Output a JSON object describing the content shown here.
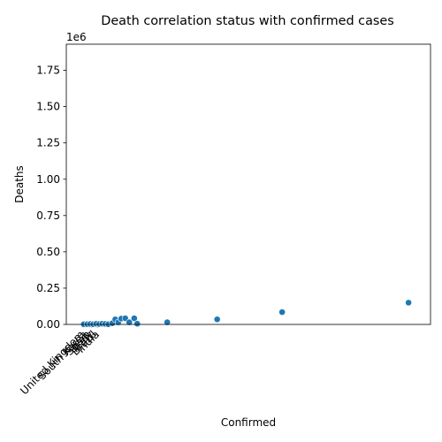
{
  "chart_data": {
    "type": "scatter",
    "title": "Death correlation status with confirmed cases",
    "xlabel": "Confirmed",
    "ylabel": "Deaths",
    "y_offset_label": "1e6",
    "ylim": [
      0,
      1930000
    ],
    "yticks": [
      0,
      250000,
      500000,
      750000,
      1000000,
      1250000,
      1500000,
      1750000
    ],
    "ytick_labels": [
      "0.00",
      "0.25",
      "0.50",
      "0.75",
      "1.00",
      "1.25",
      "1.50",
      "1.75"
    ],
    "x_axis": "categorical",
    "x_tick_labels": [
      "United Kingdom",
      "South Korea",
      "Spain",
      "Italy",
      "Brazil",
      "India"
    ],
    "grid": false,
    "marker_color": "#1f77b4",
    "points": [
      {
        "x": 0.3,
        "y": 1000
      },
      {
        "x": 1.0,
        "y": 2000
      },
      {
        "x": 1.6,
        "y": 3000
      },
      {
        "x": 2.2,
        "y": 1500
      },
      {
        "x": 2.8,
        "y": 4000
      },
      {
        "x": 3.4,
        "y": 2500
      },
      {
        "x": 4.0,
        "y": 5000
      },
      {
        "x": 4.6,
        "y": 3500
      },
      {
        "x": 5.2,
        "y": 1000
      },
      {
        "x": 6.0,
        "y": 8000
      },
      {
        "x": 6.6,
        "y": 35000
      },
      {
        "x": 7.2,
        "y": 15000
      },
      {
        "x": 7.8,
        "y": 40000
      },
      {
        "x": 8.6,
        "y": 42000
      },
      {
        "x": 9.4,
        "y": 15000
      },
      {
        "x": 10.4,
        "y": 42000
      },
      {
        "x": 11.0,
        "y": 5000
      },
      {
        "x": 17.0,
        "y": 15000
      },
      {
        "x": 27.0,
        "y": 35000
      },
      {
        "x": 40.0,
        "y": 85000
      },
      {
        "x": 65.3,
        "y": 150000
      }
    ],
    "xlim": [
      -3.2,
      69.7
    ]
  }
}
